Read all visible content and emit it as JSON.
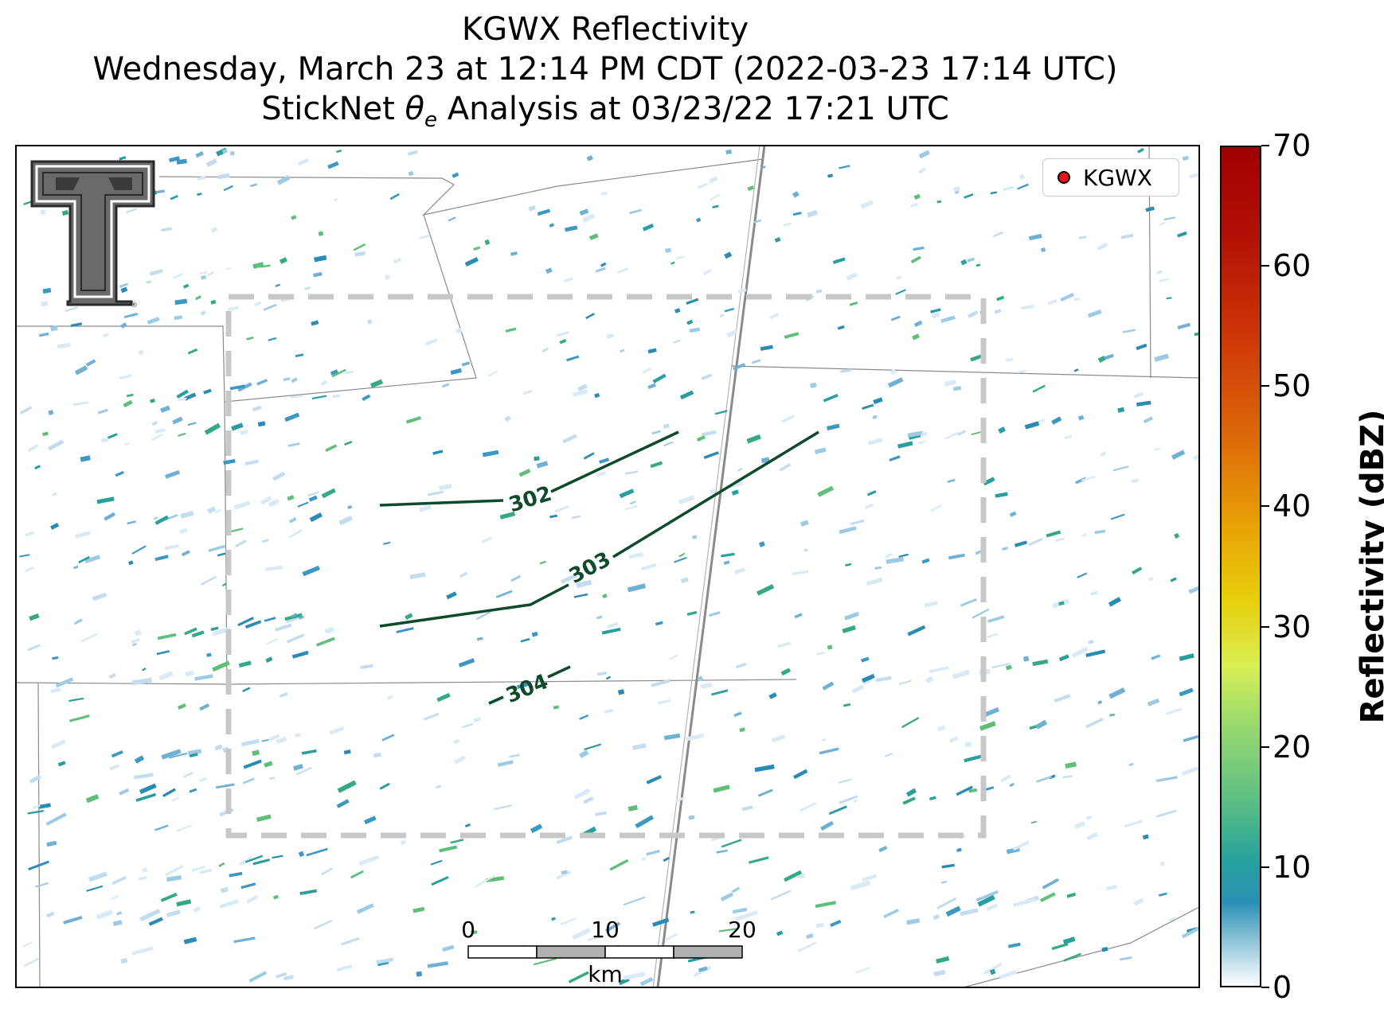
{
  "title": {
    "line1": "KGWX Reflectivity",
    "line2": "Wednesday, March 23 at 12:14 PM CDT (2022-03-23 17:14 UTC)",
    "line3_prefix": "StickNet ",
    "line3_theta": "θ",
    "line3_sub": "e",
    "line3_suffix": " Analysis at 03/23/22 17:21 UTC"
  },
  "legend": {
    "label": "KGWX",
    "marker_color": "#e8121b"
  },
  "colorbar": {
    "title": "Reflectivity (dBZ)",
    "ticks": [
      "0",
      "10",
      "20",
      "30",
      "40",
      "50",
      "60",
      "70"
    ],
    "range": [
      0,
      70
    ]
  },
  "contours": [
    {
      "label": "302"
    },
    {
      "label": "303"
    },
    {
      "label": "304"
    }
  ],
  "scale_bar": {
    "labels": [
      "0",
      "10",
      "20"
    ],
    "unit": "km"
  },
  "colors": {
    "contour": "#0e4a2b",
    "box": "#c8c8c8",
    "border": "#808080",
    "highway": "#909090"
  }
}
